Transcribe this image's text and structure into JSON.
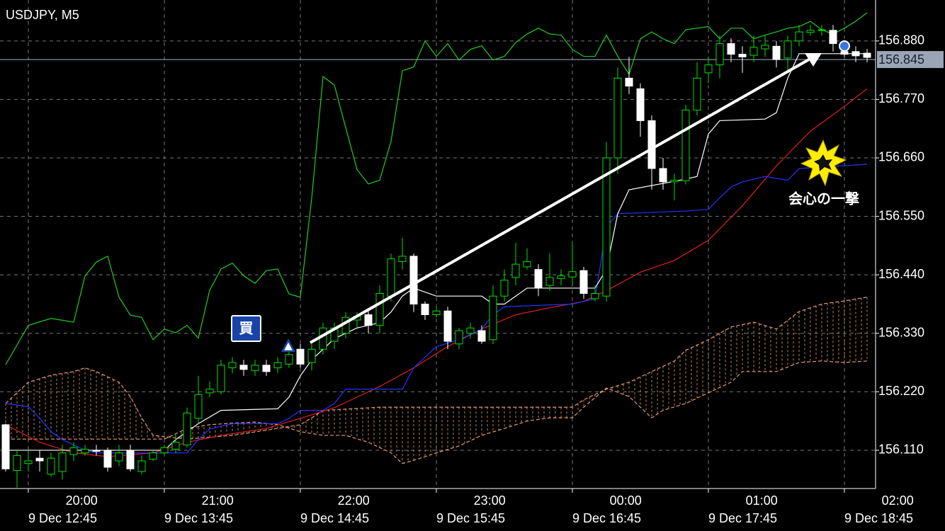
{
  "chart_data": {
    "type": "candlestick",
    "title": "USDJPY, M5",
    "xlim": [
      -0.5,
      76.75
    ],
    "ylim": [
      156.038,
      156.957
    ],
    "grid": true,
    "up_color": "#00e000",
    "down_color": "#ffffff",
    "yticks": [
      {
        "value": 156.88,
        "label": "156.880"
      },
      {
        "value": 156.77,
        "label": "156.770"
      },
      {
        "value": 156.66,
        "label": "156.660"
      },
      {
        "value": 156.55,
        "label": "156.550"
      },
      {
        "value": 156.44,
        "label": "156.440"
      },
      {
        "value": 156.33,
        "label": "156.330"
      },
      {
        "value": 156.22,
        "label": "156.220"
      },
      {
        "value": 156.11,
        "label": "156.110"
      }
    ],
    "current_price": 156.845,
    "xticks": [
      {
        "value": 2,
        "label": "9 Dec 12:45"
      },
      {
        "value": 14,
        "label": "9 Dec 13:45"
      },
      {
        "value": 26,
        "label": "9 Dec 14:45"
      },
      {
        "value": 38,
        "label": "9 Dec 15:45"
      },
      {
        "value": 50,
        "label": "9 Dec 16:45"
      },
      {
        "value": 62,
        "label": "9 Dec 17:45"
      },
      {
        "value": 74,
        "label": "9 Dec 18:45"
      }
    ],
    "x2ticks": [
      {
        "value": 6.7,
        "label": "20:00"
      },
      {
        "value": 18.7,
        "label": "21:00"
      },
      {
        "value": 30.7,
        "label": "22:00"
      },
      {
        "value": 42.7,
        "label": "23:00"
      },
      {
        "value": 54.7,
        "label": "00:00"
      },
      {
        "value": 66.7,
        "label": "01:00"
      },
      {
        "value": 78.7,
        "label": "02:00"
      }
    ],
    "candles": [
      [
        156.158,
        156.16,
        156.07,
        156.075
      ],
      [
        156.072,
        156.11,
        156.04,
        156.1
      ],
      [
        156.085,
        156.11,
        156.07,
        156.09
      ],
      [
        156.095,
        156.11,
        156.07,
        156.09
      ],
      [
        156.065,
        156.105,
        156.06,
        156.095
      ],
      [
        156.07,
        156.12,
        156.055,
        156.105
      ],
      [
        156.102,
        156.125,
        156.09,
        156.115
      ],
      [
        156.105,
        156.12,
        156.1,
        156.112
      ],
      [
        156.11,
        156.12,
        156.1,
        156.108
      ],
      [
        156.11,
        156.115,
        156.07,
        156.078
      ],
      [
        156.09,
        156.12,
        156.08,
        156.105
      ],
      [
        156.11,
        156.12,
        156.07,
        156.075
      ],
      [
        156.07,
        156.1,
        156.065,
        156.09
      ],
      [
        156.093,
        156.11,
        156.09,
        156.105
      ],
      [
        156.105,
        156.12,
        156.1,
        156.115
      ],
      [
        156.112,
        156.14,
        156.105,
        156.125
      ],
      [
        156.12,
        156.19,
        156.115,
        156.18
      ],
      [
        156.17,
        156.25,
        156.16,
        156.215
      ],
      [
        156.218,
        156.24,
        156.21,
        156.225
      ],
      [
        156.22,
        156.28,
        156.215,
        156.27
      ],
      [
        156.265,
        156.285,
        156.255,
        156.275
      ],
      [
        156.27,
        156.28,
        156.25,
        156.262
      ],
      [
        156.26,
        156.28,
        156.25,
        156.27
      ],
      [
        156.27,
        156.28,
        156.25,
        156.258
      ],
      [
        156.265,
        156.285,
        156.255,
        156.275
      ],
      [
        156.272,
        156.3,
        156.265,
        156.29
      ],
      [
        156.3,
        156.31,
        156.265,
        156.272
      ],
      [
        156.275,
        156.31,
        156.26,
        156.3
      ],
      [
        156.3,
        156.35,
        156.29,
        156.34
      ],
      [
        156.315,
        156.35,
        156.3,
        156.34
      ],
      [
        156.33,
        156.37,
        156.32,
        156.36
      ],
      [
        156.355,
        156.37,
        156.34,
        156.362
      ],
      [
        156.365,
        156.375,
        156.33,
        156.345
      ],
      [
        156.345,
        156.42,
        156.33,
        156.405
      ],
      [
        156.4,
        156.48,
        156.39,
        156.47
      ],
      [
        156.465,
        156.51,
        156.45,
        156.475
      ],
      [
        156.475,
        156.48,
        156.37,
        156.385
      ],
      [
        156.385,
        156.39,
        156.355,
        156.365
      ],
      [
        156.365,
        156.38,
        156.36,
        156.372
      ],
      [
        156.372,
        156.38,
        156.3,
        156.315
      ],
      [
        156.31,
        156.34,
        156.3,
        156.335
      ],
      [
        156.33,
        156.35,
        156.32,
        156.34
      ],
      [
        156.335,
        156.345,
        156.31,
        156.315
      ],
      [
        156.318,
        156.42,
        156.31,
        156.4
      ],
      [
        156.4,
        156.45,
        156.39,
        156.43
      ],
      [
        156.435,
        156.5,
        156.42,
        156.46
      ],
      [
        156.455,
        156.49,
        156.45,
        156.465
      ],
      [
        156.45,
        156.46,
        156.4,
        156.415
      ],
      [
        156.42,
        156.48,
        156.41,
        156.435
      ],
      [
        156.433,
        156.45,
        156.42,
        156.438
      ],
      [
        156.436,
        156.5,
        156.42,
        156.446
      ],
      [
        156.448,
        156.455,
        156.395,
        156.405
      ],
      [
        156.395,
        156.42,
        156.39,
        156.405
      ],
      [
        156.4,
        156.69,
        156.39,
        156.66
      ],
      [
        156.66,
        156.83,
        156.63,
        156.81
      ],
      [
        156.81,
        156.85,
        156.78,
        156.795
      ],
      [
        156.79,
        156.8,
        156.7,
        156.73
      ],
      [
        156.73,
        156.74,
        156.6,
        156.64
      ],
      [
        156.64,
        156.66,
        156.6,
        156.615
      ],
      [
        156.615,
        156.63,
        156.58,
        156.618
      ],
      [
        156.617,
        156.76,
        156.61,
        156.75
      ],
      [
        156.75,
        156.84,
        156.74,
        156.81
      ],
      [
        156.82,
        156.85,
        156.8,
        156.835
      ],
      [
        156.835,
        156.89,
        156.81,
        156.875
      ],
      [
        156.875,
        156.885,
        156.84,
        156.855
      ],
      [
        156.855,
        156.87,
        156.82,
        156.85
      ],
      [
        156.853,
        156.89,
        156.84,
        156.868
      ],
      [
        156.865,
        156.89,
        156.85,
        156.872
      ],
      [
        156.87,
        156.88,
        156.83,
        156.845
      ],
      [
        156.848,
        156.89,
        156.82,
        156.88
      ],
      [
        156.88,
        156.91,
        156.87,
        156.897
      ],
      [
        156.896,
        156.91,
        156.89,
        156.9
      ],
      [
        156.9,
        156.91,
        156.89,
        156.901
      ],
      [
        156.9,
        156.91,
        156.86,
        156.875
      ],
      [
        156.86,
        156.87,
        156.85,
        156.855
      ],
      [
        156.86,
        156.87,
        156.84,
        156.852
      ],
      [
        156.857,
        156.865,
        156.84,
        156.849
      ]
    ],
    "lines": [
      {
        "color": "#22cc22",
        "x": [
          0,
          2,
          4,
          6,
          7,
          8,
          9,
          10,
          11,
          12,
          13,
          14,
          15,
          16,
          17,
          18,
          19,
          20,
          21,
          22,
          23,
          24,
          25,
          26,
          27,
          28,
          29,
          30,
          31,
          32,
          33,
          34,
          35,
          36,
          37,
          38,
          39,
          40,
          41,
          42,
          43,
          44,
          45,
          46,
          47,
          48,
          49,
          50,
          51,
          52,
          53,
          54,
          55,
          56,
          57,
          58,
          59,
          60,
          61,
          62,
          63,
          64,
          65,
          66,
          67,
          68,
          69,
          70,
          71,
          72,
          73,
          74,
          75,
          76
        ],
        "values": [
          156.271,
          156.345,
          156.358,
          156.351,
          156.438,
          156.464,
          156.475,
          156.398,
          156.364,
          156.36,
          156.318,
          156.338,
          156.331,
          156.345,
          156.321,
          156.411,
          156.451,
          156.462,
          156.438,
          156.424,
          156.448,
          156.451,
          156.404,
          156.398,
          156.584,
          156.813,
          156.797,
          156.717,
          156.638,
          156.611,
          156.618,
          156.691,
          156.824,
          156.831,
          156.88,
          156.851,
          156.875,
          156.844,
          156.864,
          156.871,
          156.844,
          156.851,
          156.877,
          156.893,
          156.904,
          156.893,
          156.891,
          156.864,
          156.851,
          156.851,
          156.891,
          156.851,
          156.817,
          156.884,
          156.897,
          156.884,
          156.875,
          156.901,
          156.904,
          156.907,
          156.884,
          156.904,
          156.904,
          156.884,
          156.891,
          156.897,
          156.904,
          156.907,
          156.917,
          156.901,
          156.893,
          156.904,
          156.917,
          156.933
        ]
      },
      {
        "color": "#e0201a",
        "x": [
          0,
          3,
          6,
          9,
          13,
          16,
          19,
          23,
          26,
          29,
          33,
          36,
          39,
          42,
          45,
          48,
          51,
          53,
          56,
          59,
          62,
          65,
          68,
          71,
          74,
          76
        ],
        "values": [
          156.158,
          156.125,
          156.105,
          156.098,
          156.105,
          156.125,
          156.138,
          156.151,
          156.17,
          156.19,
          156.23,
          156.265,
          156.305,
          156.338,
          156.365,
          156.378,
          156.39,
          156.41,
          156.445,
          156.467,
          156.505,
          156.57,
          156.645,
          156.71,
          156.757,
          156.79
        ]
      },
      {
        "color": "#2233ff",
        "x": [
          0,
          2,
          3,
          4,
          5,
          7,
          8,
          16,
          17,
          18,
          20,
          24,
          25,
          26,
          28,
          29,
          30,
          35,
          36,
          37,
          38,
          40,
          42,
          43,
          44,
          50,
          51,
          52,
          53,
          54,
          60,
          62,
          63,
          64,
          65,
          67,
          69,
          70,
          76
        ],
        "values": [
          156.198,
          156.192,
          156.17,
          156.145,
          156.13,
          156.11,
          156.105,
          156.105,
          156.13,
          156.15,
          156.16,
          156.16,
          156.17,
          156.185,
          156.185,
          156.198,
          156.225,
          156.225,
          156.265,
          156.285,
          156.305,
          156.318,
          156.338,
          156.365,
          156.38,
          156.385,
          156.39,
          156.395,
          156.53,
          156.555,
          156.56,
          156.563,
          156.585,
          156.605,
          156.615,
          156.625,
          156.618,
          156.64,
          156.648
        ]
      },
      {
        "color": "#ffffff",
        "x": [
          0,
          14,
          15,
          17,
          19,
          24,
          25,
          26,
          27,
          29,
          31,
          33,
          34,
          35,
          36,
          38,
          42,
          43,
          44,
          45,
          46,
          52,
          53,
          54,
          55,
          60,
          61,
          62,
          63,
          67,
          68,
          69,
          70,
          76
        ],
        "values": [
          156.11,
          156.11,
          156.13,
          156.16,
          156.185,
          156.188,
          156.21,
          156.25,
          156.28,
          156.32,
          156.34,
          156.35,
          156.37,
          156.4,
          156.415,
          156.4,
          156.4,
          156.385,
          156.385,
          156.4,
          156.415,
          156.415,
          156.45,
          156.555,
          156.6,
          156.62,
          156.625,
          156.705,
          156.73,
          156.733,
          156.745,
          156.81,
          156.856,
          156.856
        ]
      }
    ],
    "cloud": {
      "color": "#e89a66",
      "span_a": {
        "x": [
          0,
          2,
          4,
          6,
          7,
          8,
          10,
          11,
          12,
          13,
          16,
          20,
          24,
          26,
          27,
          28,
          33,
          50,
          51,
          53,
          55,
          57,
          59,
          60,
          62,
          64,
          66,
          68,
          70,
          72,
          74,
          76
        ],
        "values": [
          156.198,
          156.238,
          156.251,
          156.258,
          156.265,
          156.258,
          156.238,
          156.211,
          156.171,
          156.138,
          156.131,
          156.138,
          156.151,
          156.158,
          156.171,
          156.185,
          156.191,
          156.191,
          156.205,
          156.225,
          156.238,
          156.258,
          156.278,
          156.298,
          156.318,
          156.342,
          156.351,
          156.338,
          156.371,
          156.385,
          156.391,
          156.398
        ]
      },
      "span_b": {
        "x": [
          0,
          14,
          16,
          18,
          20,
          22,
          24,
          26,
          28,
          30,
          32,
          34,
          35,
          36,
          38,
          40,
          42,
          44,
          46,
          48,
          50,
          51,
          53,
          55,
          56,
          57,
          58,
          60,
          62,
          64,
          65,
          68,
          70,
          72,
          74,
          76
        ],
        "values": [
          156.131,
          156.131,
          156.151,
          156.158,
          156.161,
          156.163,
          156.158,
          156.145,
          156.138,
          156.138,
          156.125,
          156.105,
          156.085,
          156.091,
          156.105,
          156.118,
          156.138,
          156.151,
          156.165,
          156.171,
          156.171,
          156.191,
          156.227,
          156.211,
          156.191,
          156.171,
          156.185,
          156.198,
          156.218,
          156.238,
          156.258,
          156.258,
          156.275,
          156.278,
          156.275,
          156.278
        ]
      }
    },
    "annotations": {
      "buy": "買",
      "critical_hit": "会心の一撃"
    }
  }
}
